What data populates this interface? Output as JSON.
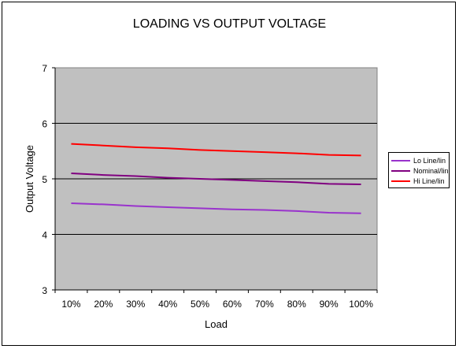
{
  "chart_data": {
    "type": "line",
    "title": "LOADING VS OUTPUT VOLTAGE",
    "xlabel": "Load",
    "ylabel": "Output Voltage",
    "categories": [
      "10%",
      "20%",
      "30%",
      "40%",
      "50%",
      "60%",
      "70%",
      "80%",
      "90%",
      "100%"
    ],
    "ylim": [
      3,
      7
    ],
    "yticks": [
      "3",
      "4",
      "5",
      "6",
      "7"
    ],
    "grid": true,
    "legend_position": "right",
    "plot_background": "#c0c0c0",
    "series": [
      {
        "name": "Lo Line/lin",
        "color": "#9933cc",
        "values": [
          4.56,
          4.54,
          4.51,
          4.49,
          4.47,
          4.45,
          4.44,
          4.42,
          4.39,
          4.38
        ]
      },
      {
        "name": "Nominal/lin",
        "color": "#800080",
        "values": [
          5.1,
          5.07,
          5.05,
          5.02,
          5.0,
          4.98,
          4.96,
          4.94,
          4.91,
          4.9
        ]
      },
      {
        "name": "Hi Line/lin",
        "color": "#ff0000",
        "values": [
          5.63,
          5.6,
          5.57,
          5.55,
          5.52,
          5.5,
          5.48,
          5.46,
          5.43,
          5.42
        ]
      }
    ]
  }
}
